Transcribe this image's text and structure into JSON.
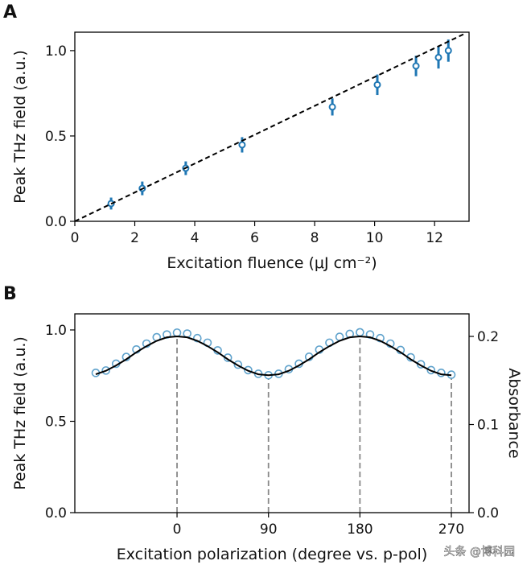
{
  "chart_data": [
    {
      "type": "scatter",
      "panel_label": "A",
      "x_label": "Excitation fluence (μJ cm⁻²)",
      "y_label": "Peak THz field (a.u.)",
      "xlim": [
        0,
        13.15
      ],
      "ylim": [
        0,
        1.108
      ],
      "xticks": [
        0,
        2,
        4,
        6,
        8,
        10,
        12
      ],
      "yticks": [
        {
          "value": 0,
          "label": "0.0"
        },
        {
          "value": 0.5,
          "label": "0.5"
        },
        {
          "value": 1,
          "label": "1.0"
        }
      ],
      "series": [
        {
          "color": "#1f77b4",
          "marker": "circle",
          "x": [
            1.21,
            2.25,
            3.7,
            5.58,
            8.59,
            10.09,
            11.38,
            12.13,
            12.46
          ],
          "values": [
            0.104,
            0.193,
            0.311,
            0.448,
            0.67,
            0.8,
            0.91,
            0.96,
            1.0
          ],
          "errors": [
            0.035,
            0.04,
            0.04,
            0.045,
            0.05,
            0.06,
            0.06,
            0.065,
            0.065
          ]
        },
        {
          "color": "#000000",
          "style": "dashed",
          "x": [
            0,
            13
          ],
          "values": [
            0,
            1.099
          ]
        }
      ]
    },
    {
      "type": "line",
      "panel_label": "B",
      "x_label": "Excitation polarization (degree vs. p-pol)",
      "y_label": "Peak THz field (a.u.)",
      "y2_label": "Absorbance",
      "xlim": [
        -100.6,
        287.4
      ],
      "ylim": [
        0,
        1.088
      ],
      "y2lim": [
        0,
        0.2256
      ],
      "xticks": [
        0,
        90,
        180,
        270
      ],
      "yticks": [
        {
          "value": 0,
          "label": "0.0"
        },
        {
          "value": 0.5,
          "label": "0.5"
        },
        {
          "value": 1,
          "label": "1.0"
        }
      ],
      "y2ticks": [
        {
          "value": 0,
          "label": "0.0"
        },
        0.1,
        0.2
      ],
      "tick_guides": true,
      "series": [
        {
          "color": "#5fa2cc",
          "marker": "circle",
          "x": [
            -80,
            -70,
            -60,
            -50,
            -40,
            -30,
            -20,
            -10,
            0,
            10,
            20,
            30,
            40,
            50,
            60,
            70,
            80,
            90,
            100,
            110,
            120,
            130,
            140,
            150,
            160,
            170,
            180,
            190,
            200,
            210,
            220,
            230,
            240,
            250,
            260,
            270
          ],
          "values": [
            0.765,
            0.778,
            0.815,
            0.852,
            0.893,
            0.925,
            0.96,
            0.975,
            0.985,
            0.98,
            0.955,
            0.93,
            0.888,
            0.848,
            0.81,
            0.78,
            0.76,
            0.752,
            0.76,
            0.785,
            0.815,
            0.853,
            0.892,
            0.93,
            0.962,
            0.978,
            0.987,
            0.975,
            0.955,
            0.925,
            0.89,
            0.85,
            0.812,
            0.78,
            0.765,
            0.755
          ]
        },
        {
          "color": "#000000",
          "style": "solid",
          "axis": "y2",
          "x": [
            -80,
            -70,
            -60,
            -50,
            -40,
            -30,
            -20,
            -10,
            0,
            10,
            20,
            30,
            40,
            50,
            60,
            70,
            80,
            90,
            100,
            110,
            120,
            130,
            140,
            150,
            160,
            170,
            180,
            190,
            200,
            210,
            220,
            230,
            240,
            250,
            260,
            270
          ],
          "values": [
            0.157,
            0.161,
            0.167,
            0.174,
            0.182,
            0.189,
            0.195,
            0.199,
            0.2,
            0.199,
            0.195,
            0.189,
            0.182,
            0.174,
            0.167,
            0.161,
            0.157,
            0.156,
            0.157,
            0.161,
            0.167,
            0.174,
            0.182,
            0.189,
            0.195,
            0.199,
            0.2,
            0.199,
            0.195,
            0.189,
            0.182,
            0.174,
            0.167,
            0.161,
            0.157,
            0.156
          ]
        }
      ]
    }
  ],
  "watermark": "头条 @博科园"
}
